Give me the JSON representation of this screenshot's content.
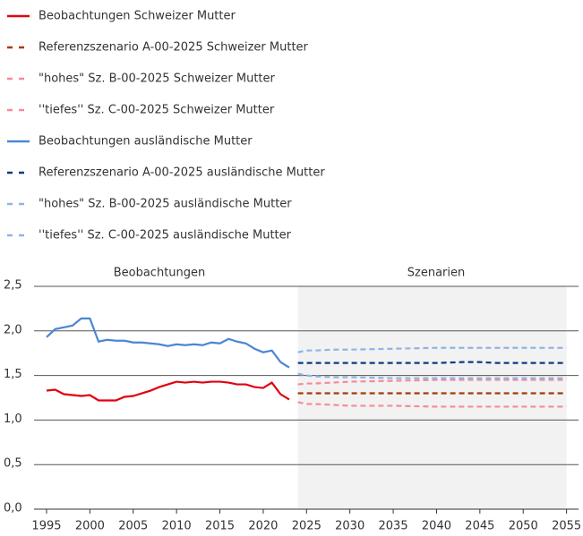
{
  "chart_data": {
    "type": "line",
    "annotations": [
      "Beobachtungen",
      "Szenarien"
    ],
    "shaded_region": [
      2024,
      2055
    ],
    "xlim": [
      1994,
      2056
    ],
    "xticks": [
      1995,
      2000,
      2005,
      2010,
      2015,
      2020,
      2025,
      2030,
      2035,
      2040,
      2045,
      2050,
      2055
    ],
    "ylim": [
      0,
      2.5
    ],
    "yticks": [
      {
        "value": 0,
        "label": "0,0"
      },
      {
        "value": 0.5,
        "label": "0,5"
      },
      {
        "value": 1,
        "label": "1,0"
      },
      {
        "value": 1.5,
        "label": "1,5"
      },
      {
        "value": 2,
        "label": "2,0"
      },
      {
        "value": 2.5,
        "label": "2,5"
      }
    ],
    "grid": true,
    "series": [
      {
        "name": "Beobachtungen Schweizer Mutter",
        "color": "#e3000f",
        "dashed": false,
        "x": [
          1995,
          1996,
          1997,
          1998,
          1999,
          2000,
          2001,
          2002,
          2003,
          2004,
          2005,
          2006,
          2007,
          2008,
          2009,
          2010,
          2011,
          2012,
          2013,
          2014,
          2015,
          2016,
          2017,
          2018,
          2019,
          2020,
          2021,
          2022,
          2023
        ],
        "values": [
          1.33,
          1.34,
          1.29,
          1.28,
          1.27,
          1.28,
          1.22,
          1.22,
          1.22,
          1.26,
          1.27,
          1.3,
          1.33,
          1.37,
          1.4,
          1.43,
          1.42,
          1.43,
          1.42,
          1.43,
          1.43,
          1.42,
          1.4,
          1.4,
          1.37,
          1.36,
          1.42,
          1.29,
          1.23
        ]
      },
      {
        "name": "Referenzszenario A-00-2025 Schweizer Mutter",
        "color": "#a63a0a",
        "dashed": true,
        "x": [
          2024,
          2025,
          2026,
          2028,
          2030,
          2035,
          2040,
          2045,
          2050,
          2055
        ],
        "values": [
          1.3,
          1.3,
          1.3,
          1.3,
          1.3,
          1.3,
          1.3,
          1.3,
          1.3,
          1.3
        ]
      },
      {
        "name": "\"hohes\" Sz. B-00-2025 Schweizer Mutter",
        "color": "#f78b98",
        "dashed": true,
        "x": [
          2024,
          2025,
          2026,
          2028,
          2030,
          2035,
          2040,
          2045,
          2050,
          2055
        ],
        "values": [
          1.4,
          1.41,
          1.41,
          1.42,
          1.43,
          1.44,
          1.45,
          1.45,
          1.45,
          1.45
        ]
      },
      {
        "name": "''tiefes'' Sz. C-00-2025 Schweizer Mutter",
        "color": "#f78b98",
        "dashed": true,
        "x": [
          2024,
          2025,
          2026,
          2028,
          2030,
          2035,
          2040,
          2045,
          2050,
          2055
        ],
        "values": [
          1.2,
          1.18,
          1.18,
          1.17,
          1.16,
          1.16,
          1.15,
          1.15,
          1.15,
          1.15
        ]
      },
      {
        "name": "Beobachtungen ausländische Mutter",
        "color": "#4a86d4",
        "dashed": false,
        "x": [
          1995,
          1996,
          1997,
          1998,
          1999,
          2000,
          2001,
          2002,
          2003,
          2004,
          2005,
          2006,
          2007,
          2008,
          2009,
          2010,
          2011,
          2012,
          2013,
          2014,
          2015,
          2016,
          2017,
          2018,
          2019,
          2020,
          2021,
          2022,
          2023
        ],
        "values": [
          1.93,
          2.02,
          2.04,
          2.06,
          2.14,
          2.14,
          1.88,
          1.9,
          1.89,
          1.89,
          1.87,
          1.87,
          1.86,
          1.85,
          1.83,
          1.85,
          1.84,
          1.85,
          1.84,
          1.87,
          1.86,
          1.91,
          1.88,
          1.86,
          1.8,
          1.76,
          1.78,
          1.65,
          1.59
        ]
      },
      {
        "name": "Referenzszenario A-00-2025 ausländische Mutter",
        "color": "#0b3a82",
        "dashed": true,
        "x": [
          2024,
          2025,
          2026,
          2028,
          2030,
          2035,
          2040,
          2043,
          2045,
          2047,
          2050,
          2055
        ],
        "values": [
          1.64,
          1.64,
          1.64,
          1.64,
          1.64,
          1.64,
          1.64,
          1.65,
          1.65,
          1.64,
          1.64,
          1.64
        ]
      },
      {
        "name": "\"hohes\" Sz. B-00-2025 ausländische Mutter",
        "color": "#8fb4e6",
        "dashed": true,
        "x": [
          2024,
          2025,
          2026,
          2028,
          2030,
          2035,
          2040,
          2045,
          2050,
          2055
        ],
        "values": [
          1.76,
          1.78,
          1.78,
          1.79,
          1.79,
          1.8,
          1.81,
          1.81,
          1.81,
          1.81
        ]
      },
      {
        "name": "''tiefes'' Sz. C-00-2025 ausländische Mutter",
        "color": "#8fb4e6",
        "dashed": true,
        "x": [
          2024,
          2025,
          2026,
          2028,
          2030,
          2035,
          2040,
          2045,
          2050,
          2055
        ],
        "values": [
          1.52,
          1.5,
          1.49,
          1.48,
          1.48,
          1.47,
          1.47,
          1.47,
          1.47,
          1.47
        ]
      }
    ]
  }
}
